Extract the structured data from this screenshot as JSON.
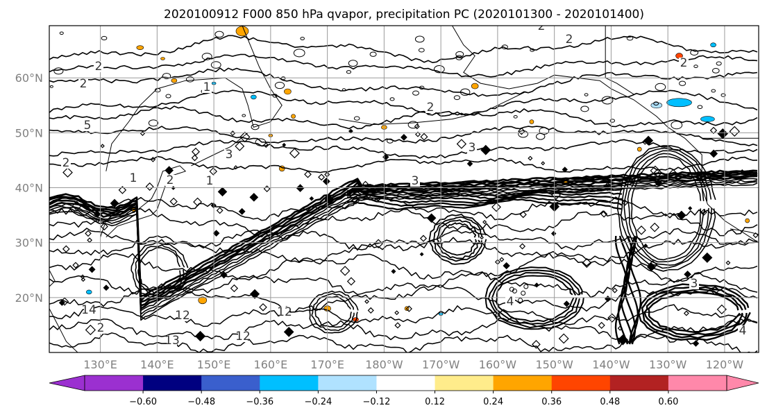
{
  "title": "2020100912 F000 850 hPa qvapor, precipitation PC (2020101300 - 2020101400)",
  "map": {
    "lat_labels": [
      "60°N",
      "50°N",
      "40°N",
      "30°N",
      "20°N"
    ],
    "lat_values": [
      60,
      50,
      40,
      30,
      20
    ],
    "lon_labels": [
      "130°E",
      "140°E",
      "150°E",
      "160°E",
      "170°E",
      "180°W",
      "170°W",
      "160°W",
      "150°W",
      "140°W",
      "130°W",
      "120°W"
    ],
    "lon_values": [
      130,
      140,
      150,
      160,
      170,
      180,
      190,
      200,
      210,
      220,
      230,
      240
    ],
    "extent": {
      "lon_min": 121,
      "lon_max": 246,
      "lat_min": 10,
      "lat_max": 69.5
    },
    "contour_labels": [
      "2",
      "2",
      "1",
      "5",
      "1",
      "2",
      "3",
      "3",
      "2",
      "2",
      "3",
      "14",
      "12",
      "12",
      "13",
      "12",
      "4",
      "3",
      "2",
      "1",
      "2",
      "4",
      "2",
      "2"
    ],
    "contour_color": "#000000",
    "coast_color": "#000000",
    "grid": true
  },
  "colorbar": {
    "tick_labels": [
      "−0.60",
      "−0.48",
      "−0.36",
      "−0.24",
      "−0.12",
      "0.12",
      "0.24",
      "0.36",
      "0.48",
      "0.60"
    ],
    "colors": [
      "#9b30d0",
      "#000080",
      "#3a5fcd",
      "#00bfff",
      "#b0e2ff",
      "#ffffff",
      "#ffec8b",
      "#ffa500",
      "#ff4500",
      "#b22222",
      "#ff88aa",
      "#ffbbdd"
    ],
    "extend": "both"
  },
  "precip_anomaly_colors": {
    "negative_main": "#00bfff",
    "negative_light": "#b0e2ff",
    "positive_main": "#ffa500",
    "positive_light": "#ffec8b",
    "positive_strong": "#ff4500"
  }
}
